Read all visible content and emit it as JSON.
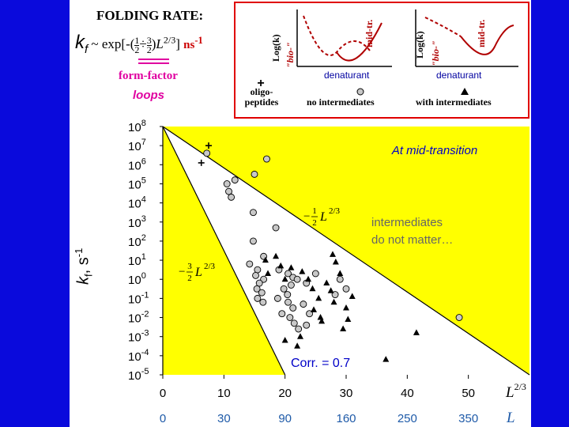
{
  "header": {
    "title": "FOLDING RATE:",
    "formula": {
      "k": "k",
      "k_sub": "f",
      "main": " ~ exp[-(",
      "frac1_num": "1",
      "frac1_den": "2",
      "sep": "÷",
      "frac2_num": "3",
      "frac2_den": "2",
      "close": ")",
      "L": "L",
      "L_exp": "2/3",
      "bracket_end": "]",
      "unit": "ns",
      "unit_exp": "-1"
    },
    "form_factor": "form-factor",
    "loops": "loops"
  },
  "legend": {
    "y_axis_label": "Log(k)",
    "bio_label": "\"bio-\"",
    "mid_tr_label": "mid-tr.",
    "denaturant": "denaturant",
    "plus_symbol": "+",
    "oligo_label": "oligo-",
    "peptides_label": "peptides",
    "no_intermediates": "no intermediates",
    "with_intermediates": "with intermediates"
  },
  "chart_data": {
    "type": "scatter",
    "title": "At mid-transition",
    "annotation": "intermediates do not matter…",
    "corr_label": "Corr. = 0.7",
    "ylabel": "k",
    "ylabel_sub": "f",
    "ylabel_unit": ", s",
    "ylabel_exp": "-1",
    "xlabel_top": "L",
    "xlabel_top_exp": "2/3",
    "xlabel_bottom": "L",
    "ylim": [
      -5,
      8
    ],
    "xlim": [
      0,
      60
    ],
    "x_ticks": [
      "0",
      "10",
      "20",
      "30",
      "40",
      "50"
    ],
    "x_ticks2": [
      "0",
      "30",
      "90",
      "160",
      "250",
      "350"
    ],
    "y_ticks": [
      "10^8",
      "10^7",
      "10^6",
      "10^5",
      "10^4",
      "10^3",
      "10^2",
      "10^1",
      "10^0",
      "10^-1",
      "10^-2",
      "10^-3",
      "10^-4",
      "10^-5"
    ],
    "line_upper_label": {
      "sign": "−",
      "num": "1",
      "den": "2",
      "L": "L",
      "exp": "2/3"
    },
    "line_lower_label": {
      "sign": "−",
      "num": "3",
      "den": "2",
      "L": "L",
      "exp": "2/3"
    },
    "lines": [
      {
        "name": "upper",
        "x": [
          0,
          60
        ],
        "y": [
          8,
          -5
        ]
      },
      {
        "name": "lower",
        "x": [
          0,
          20
        ],
        "y": [
          8,
          -5
        ]
      }
    ],
    "colors": {
      "yellow": "#ffff00",
      "circle_fill": "#c8c8c8",
      "triangle": "#000000",
      "background": "#0a0adc"
    },
    "series": [
      {
        "marker": "plus",
        "points": [
          [
            7.5,
            7.0
          ],
          [
            6.3,
            6.1
          ]
        ]
      },
      {
        "marker": "circle",
        "points": [
          [
            7.2,
            6.6
          ],
          [
            17,
            6.3
          ],
          [
            15,
            5.5
          ],
          [
            10.5,
            5.0
          ],
          [
            11.8,
            5.2
          ],
          [
            10.8,
            4.6
          ],
          [
            11.2,
            4.3
          ],
          [
            14.8,
            3.5
          ],
          [
            18.5,
            2.7
          ],
          [
            14.8,
            2.0
          ],
          [
            14.2,
            0.8
          ],
          [
            16.5,
            1.2
          ],
          [
            15.5,
            0.5
          ],
          [
            15.2,
            0.2
          ],
          [
            16.5,
            0.0
          ],
          [
            15.8,
            -0.2
          ],
          [
            15.4,
            -0.5
          ],
          [
            16.2,
            -0.7
          ],
          [
            15.5,
            -1.0
          ],
          [
            16.4,
            -1.2
          ],
          [
            19.0,
            0.5
          ],
          [
            20.5,
            0.3
          ],
          [
            21.3,
            0.1
          ],
          [
            22.0,
            0.0
          ],
          [
            21.0,
            -0.3
          ],
          [
            19.8,
            -0.5
          ],
          [
            20.4,
            -0.8
          ],
          [
            18.8,
            -1.0
          ],
          [
            20.5,
            -1.2
          ],
          [
            21.3,
            -1.5
          ],
          [
            19.5,
            -1.8
          ],
          [
            20.8,
            -2.0
          ],
          [
            21.5,
            -2.3
          ],
          [
            22.2,
            -2.6
          ],
          [
            23.5,
            -2.4
          ],
          [
            24.0,
            -1.8
          ],
          [
            23.0,
            -1.3
          ],
          [
            25.0,
            0.3
          ],
          [
            23.5,
            -0.2
          ],
          [
            29.0,
            0.0
          ],
          [
            28.2,
            -0.8
          ],
          [
            30.0,
            -0.5
          ],
          [
            48.5,
            -2.0
          ]
        ]
      },
      {
        "marker": "triangle",
        "points": [
          [
            16.8,
            1.0
          ],
          [
            18.5,
            1.2
          ],
          [
            19.3,
            0.7
          ],
          [
            17.2,
            0.3
          ],
          [
            20.0,
            0.0
          ],
          [
            21.0,
            0.6
          ],
          [
            22.8,
            0.4
          ],
          [
            23.8,
            0.0
          ],
          [
            24.5,
            -0.5
          ],
          [
            25.5,
            -1.0
          ],
          [
            26.8,
            -0.2
          ],
          [
            27.5,
            -0.6
          ],
          [
            28.3,
            0.9
          ],
          [
            27.8,
            1.3
          ],
          [
            29.0,
            0.3
          ],
          [
            31.0,
            -0.9
          ],
          [
            30.0,
            -1.5
          ],
          [
            26.0,
            -2.2
          ],
          [
            29.5,
            -2.6
          ],
          [
            22.5,
            -3.0
          ],
          [
            25.8,
            -2.0
          ],
          [
            28.0,
            -1.2
          ],
          [
            36.5,
            -4.2
          ],
          [
            41.5,
            -2.8
          ],
          [
            22.0,
            -3.5
          ],
          [
            20.0,
            -3.2
          ],
          [
            24.7,
            -1.6
          ],
          [
            30.3,
            -2.1
          ]
        ]
      }
    ]
  }
}
